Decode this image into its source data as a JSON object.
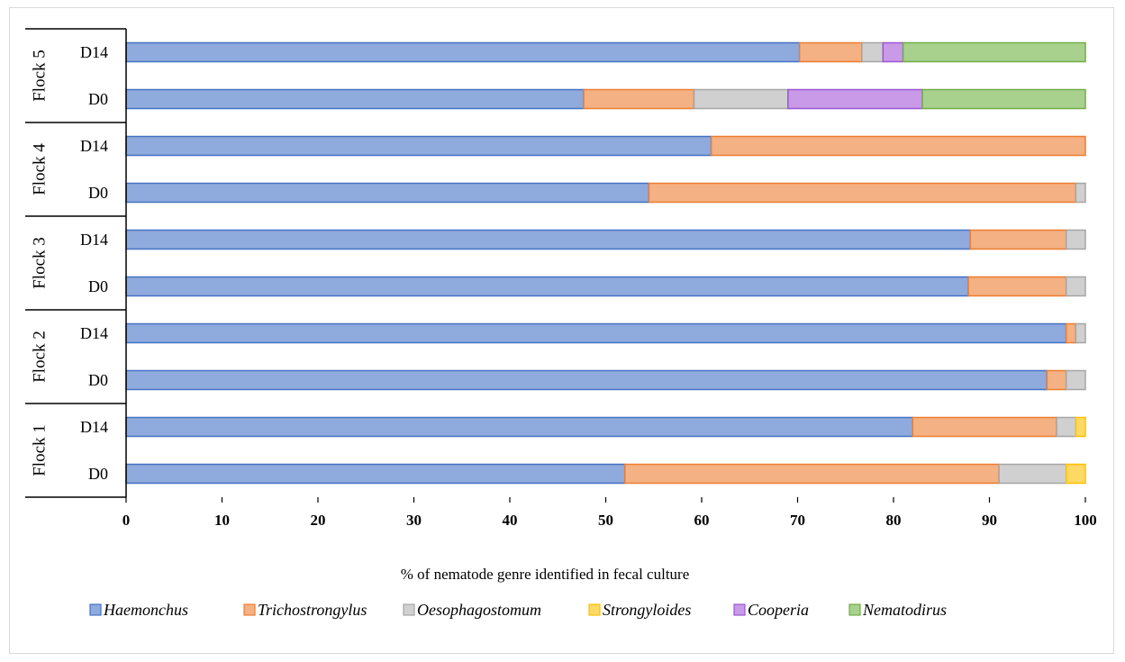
{
  "chart_data": {
    "type": "bar",
    "orientation": "horizontal",
    "stacked": true,
    "xlabel": "% of nematode genre identified in fecal culture",
    "xlim": [
      0,
      100
    ],
    "xticks": [
      "0",
      "10",
      "20",
      "30",
      "40",
      "50",
      "60",
      "70",
      "80",
      "90",
      "100"
    ],
    "legend_position": "bottom",
    "grid": false,
    "groups": [
      "Flock 1",
      "Flock 2",
      "Flock 3",
      "Flock 4",
      "Flock 5"
    ],
    "categories": [
      {
        "group": "Flock 1",
        "label": "D0"
      },
      {
        "group": "Flock 1",
        "label": "D14"
      },
      {
        "group": "Flock 2",
        "label": "D0"
      },
      {
        "group": "Flock 2",
        "label": "D14"
      },
      {
        "group": "Flock 3",
        "label": "D0"
      },
      {
        "group": "Flock 3",
        "label": "D14"
      },
      {
        "group": "Flock 4",
        "label": "D0"
      },
      {
        "group": "Flock 4",
        "label": "D14"
      },
      {
        "group": "Flock 5",
        "label": "D0"
      },
      {
        "group": "Flock 5",
        "label": "D14"
      }
    ],
    "series": [
      {
        "name": "Haemonchus",
        "color": "#8faadc",
        "stroke": "#4472c4",
        "values": [
          52,
          82,
          96,
          98,
          87.8,
          88,
          54.5,
          61,
          47.7,
          70.2
        ]
      },
      {
        "name": "Trichostrongylus",
        "color": "#f4b183",
        "stroke": "#ed7d31",
        "values": [
          39,
          15,
          2,
          1,
          10.2,
          10,
          44.5,
          39,
          11.5,
          6.5
        ]
      },
      {
        "name": "Oesophagostomum",
        "color": "#d0d0d0",
        "stroke": "#a5a5a5",
        "values": [
          7,
          2,
          2,
          1,
          2,
          2,
          1,
          0,
          9.8,
          2.2
        ]
      },
      {
        "name": "Strongyloides",
        "color": "#ffd966",
        "stroke": "#ffc000",
        "values": [
          2,
          1,
          0,
          0,
          0,
          0,
          0,
          0,
          0,
          0
        ]
      },
      {
        "name": "Cooperia",
        "color": "#c89ae8",
        "stroke": "#9b57d3",
        "values": [
          0,
          0,
          0,
          0,
          0,
          0,
          0,
          0,
          14,
          2.1
        ]
      },
      {
        "name": "Nematodirus",
        "color": "#a9d18e",
        "stroke": "#70ad47",
        "values": [
          0,
          0,
          0,
          0,
          0,
          0,
          0,
          0,
          17,
          19
        ]
      }
    ]
  }
}
